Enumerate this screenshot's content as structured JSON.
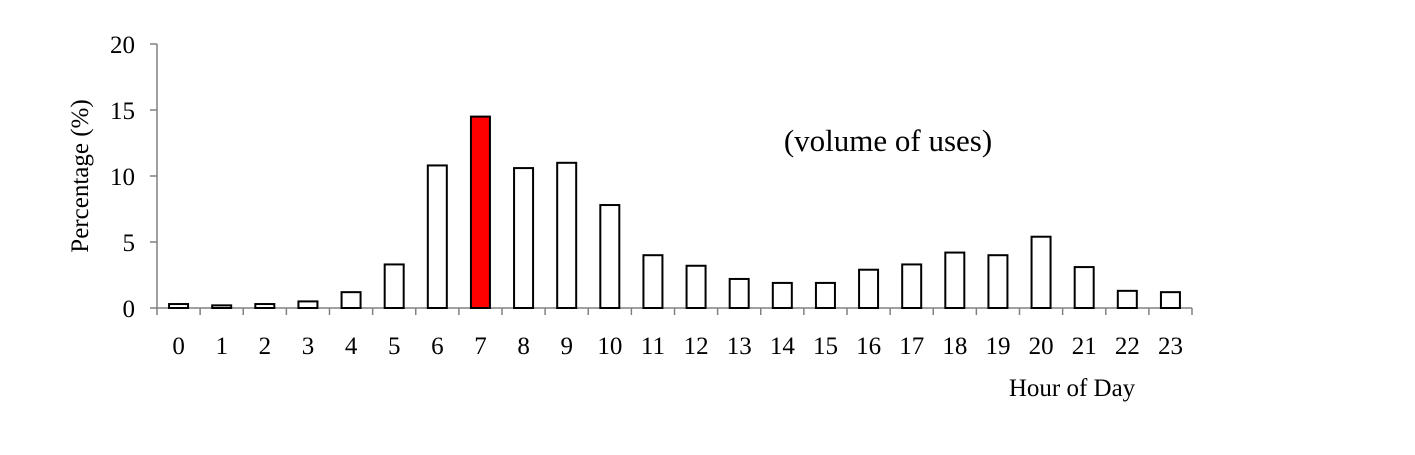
{
  "chart_data": {
    "type": "bar",
    "title": "",
    "annotation": "(volume of uses)",
    "xlabel": "Hour of Day",
    "ylabel": "Percentage (%)",
    "ylim": [
      0,
      20
    ],
    "yticks": [
      "0",
      "5",
      "10",
      "15",
      "20"
    ],
    "categories": [
      "0",
      "1",
      "2",
      "3",
      "4",
      "5",
      "6",
      "7",
      "8",
      "9",
      "10",
      "11",
      "12",
      "13",
      "14",
      "15",
      "16",
      "17",
      "18",
      "19",
      "20",
      "21",
      "22",
      "23"
    ],
    "values": [
      0.3,
      0.2,
      0.3,
      0.5,
      1.2,
      3.3,
      10.8,
      14.5,
      10.6,
      11.0,
      7.8,
      4.0,
      3.2,
      2.2,
      1.9,
      1.9,
      2.9,
      3.3,
      4.2,
      4.0,
      5.4,
      3.1,
      1.3,
      1.2
    ],
    "highlight_index": 7,
    "colors": {
      "bar_fill": "#ffffff",
      "highlight_fill": "#ff0000",
      "stroke": "#000000",
      "axis": "#808080"
    },
    "grid": false,
    "legend": "none"
  }
}
